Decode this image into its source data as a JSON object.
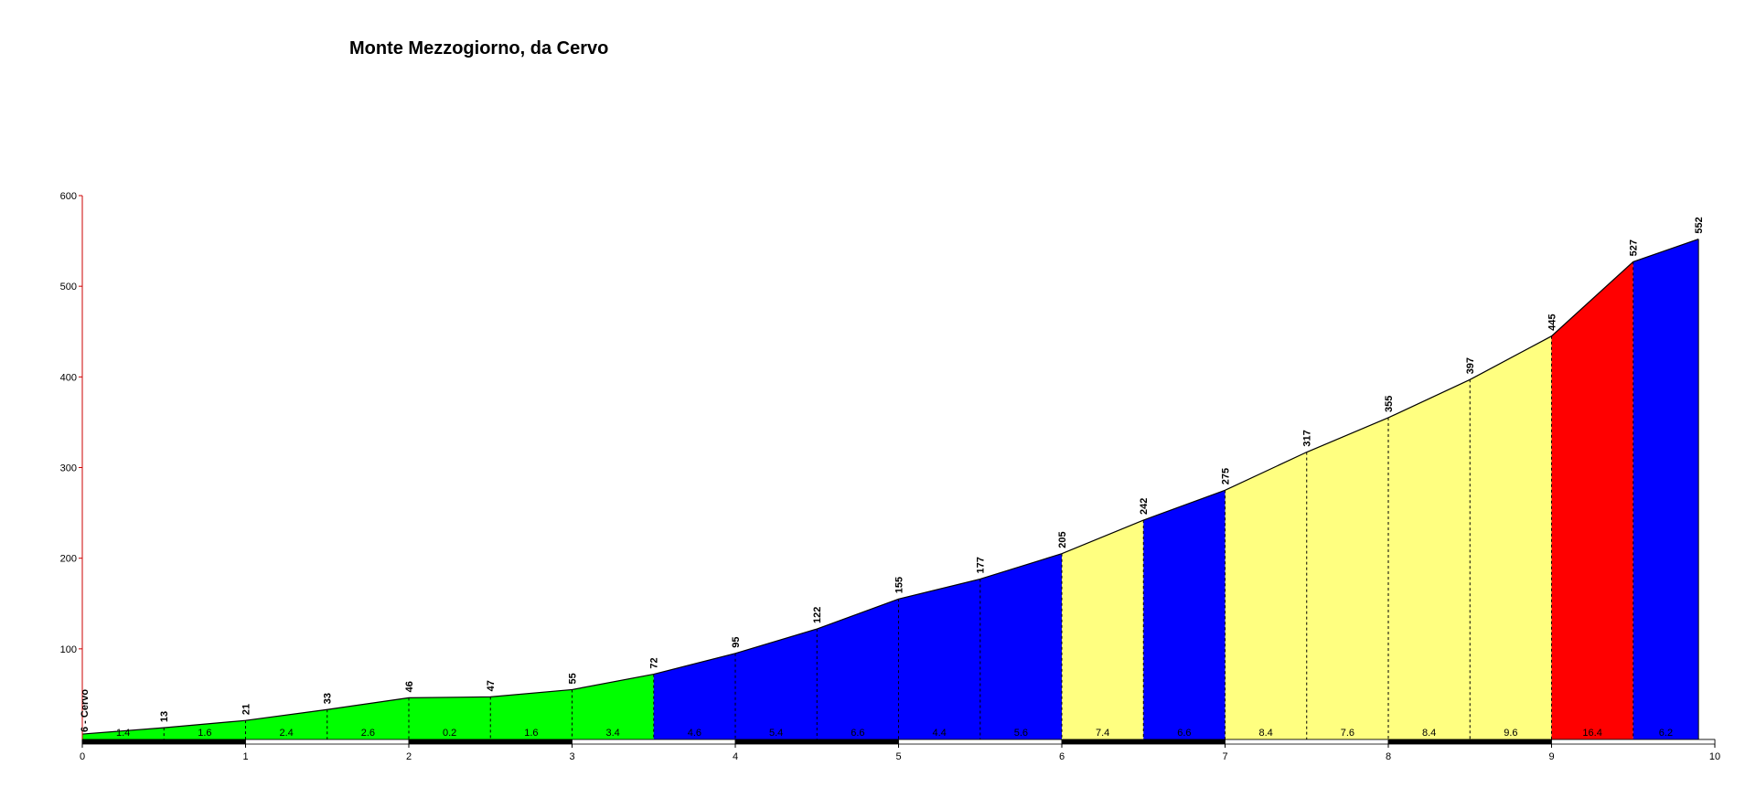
{
  "chart_data": {
    "type": "area",
    "title": "Monte Mezzogiorno, da Cervo",
    "xlabel": "",
    "ylabel": "",
    "xlim": [
      0,
      10
    ],
    "ylim": [
      0,
      600
    ],
    "x_ticks": [
      0,
      1,
      2,
      3,
      4,
      5,
      6,
      7,
      8,
      9,
      10
    ],
    "y_ticks": [
      100,
      200,
      300,
      400,
      500,
      600
    ],
    "start_label": "6 - Cervo",
    "profile": [
      {
        "x": 0.0,
        "alt": 6
      },
      {
        "x": 0.5,
        "alt": 13
      },
      {
        "x": 1.0,
        "alt": 21
      },
      {
        "x": 1.5,
        "alt": 33
      },
      {
        "x": 2.0,
        "alt": 46
      },
      {
        "x": 2.5,
        "alt": 47
      },
      {
        "x": 3.0,
        "alt": 55
      },
      {
        "x": 3.5,
        "alt": 72
      },
      {
        "x": 4.0,
        "alt": 95
      },
      {
        "x": 4.5,
        "alt": 122
      },
      {
        "x": 5.0,
        "alt": 155
      },
      {
        "x": 5.5,
        "alt": 177
      },
      {
        "x": 6.0,
        "alt": 205
      },
      {
        "x": 6.5,
        "alt": 242
      },
      {
        "x": 7.0,
        "alt": 275
      },
      {
        "x": 7.5,
        "alt": 317
      },
      {
        "x": 8.0,
        "alt": 355
      },
      {
        "x": 8.5,
        "alt": 397
      },
      {
        "x": 9.0,
        "alt": 445
      },
      {
        "x": 9.5,
        "alt": 527
      },
      {
        "x": 9.9,
        "alt": 552
      }
    ],
    "alt_labels": [
      "13",
      "21",
      "33",
      "46",
      "47",
      "55",
      "72",
      "95",
      "122",
      "155",
      "177",
      "205",
      "242",
      "275",
      "317",
      "355",
      "397",
      "445",
      "527",
      "552"
    ],
    "gradients": [
      {
        "from": 0.0,
        "to": 0.5,
        "label": "1.4"
      },
      {
        "from": 0.5,
        "to": 1.0,
        "label": "1.6"
      },
      {
        "from": 1.0,
        "to": 1.5,
        "label": "2.4"
      },
      {
        "from": 1.5,
        "to": 2.0,
        "label": "2.6"
      },
      {
        "from": 2.0,
        "to": 2.5,
        "label": "0.2"
      },
      {
        "from": 2.5,
        "to": 3.0,
        "label": "1.6"
      },
      {
        "from": 3.0,
        "to": 3.5,
        "label": "3.4"
      },
      {
        "from": 3.5,
        "to": 4.0,
        "label": "4.6"
      },
      {
        "from": 4.0,
        "to": 4.5,
        "label": "5.4"
      },
      {
        "from": 4.5,
        "to": 5.0,
        "label": "6.6"
      },
      {
        "from": 5.0,
        "to": 5.5,
        "label": "4.4"
      },
      {
        "from": 5.5,
        "to": 6.0,
        "label": "5.6"
      },
      {
        "from": 6.0,
        "to": 6.5,
        "label": "7.4"
      },
      {
        "from": 6.5,
        "to": 7.0,
        "label": "6.6"
      },
      {
        "from": 7.0,
        "to": 7.5,
        "label": "8.4"
      },
      {
        "from": 7.5,
        "to": 8.0,
        "label": "7.6"
      },
      {
        "from": 8.0,
        "to": 8.5,
        "label": "8.4"
      },
      {
        "from": 8.5,
        "to": 9.0,
        "label": "9.6"
      },
      {
        "from": 9.0,
        "to": 9.5,
        "label": "16.4"
      },
      {
        "from": 9.5,
        "to": 9.9,
        "label": "6.2"
      }
    ],
    "colored_sections": [
      {
        "from": 0.0,
        "to": 3.5,
        "color": "#00ff00"
      },
      {
        "from": 3.5,
        "to": 6.0,
        "color": "#0000ff"
      },
      {
        "from": 6.0,
        "to": 6.5,
        "color": "#ffff80"
      },
      {
        "from": 6.5,
        "to": 7.0,
        "color": "#0000ff"
      },
      {
        "from": 7.0,
        "to": 9.0,
        "color": "#ffff80"
      },
      {
        "from": 9.0,
        "to": 9.5,
        "color": "#ff0000"
      },
      {
        "from": 9.5,
        "to": 9.9,
        "color": "#0000ff"
      }
    ],
    "colors": {
      "axis": "#cc0000",
      "profile_line": "#000000",
      "scale_bar_dark": "#000000",
      "scale_bar_light": "#ffffff"
    }
  }
}
